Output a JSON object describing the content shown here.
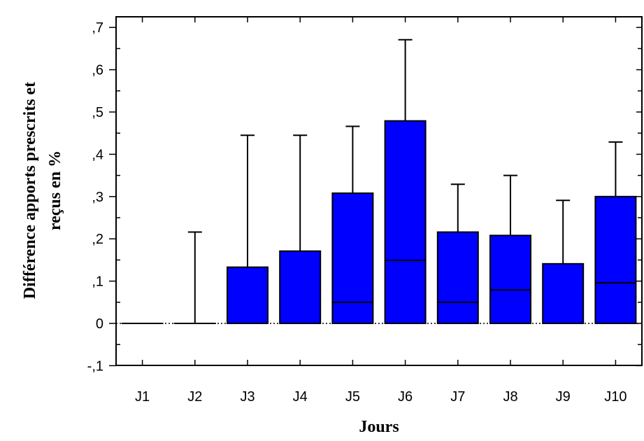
{
  "chart_data": {
    "type": "boxplot",
    "xlabel": "Jours",
    "ylabel_lines": [
      "Différence apports prescrits et",
      "reçus en %"
    ],
    "categories": [
      "J1",
      "J2",
      "J3",
      "J4",
      "J5",
      "J6",
      "J7",
      "J8",
      "J9",
      "J10"
    ],
    "ylim": [
      -0.1,
      0.7
    ],
    "yticks": [
      -0.1,
      0,
      0.1,
      0.2,
      0.3,
      0.4,
      0.5,
      0.6,
      0.7
    ],
    "ytick_labels": [
      "-,1",
      "0",
      ",1",
      ",2",
      ",3",
      ",4",
      ",5",
      ",6",
      ",7"
    ],
    "reference_line": 0,
    "box_color": "#0000ff",
    "boxes": [
      {
        "low": 0,
        "median": 0,
        "high": 0,
        "whisker": 0
      },
      {
        "low": 0,
        "median": 0,
        "high": 0,
        "whisker": 0.216
      },
      {
        "low": 0,
        "median": 0,
        "high": 0.133,
        "whisker": 0.445
      },
      {
        "low": 0,
        "median": 0,
        "high": 0.171,
        "whisker": 0.445
      },
      {
        "low": 0,
        "median": 0.05,
        "high": 0.308,
        "whisker": 0.466
      },
      {
        "low": 0,
        "median": 0.149,
        "high": 0.479,
        "whisker": 0.671
      },
      {
        "low": 0,
        "median": 0.05,
        "high": 0.216,
        "whisker": 0.329
      },
      {
        "low": 0,
        "median": 0.079,
        "high": 0.208,
        "whisker": 0.35
      },
      {
        "low": 0,
        "median": 0,
        "high": 0.141,
        "whisker": 0.291
      },
      {
        "low": 0,
        "median": 0.096,
        "high": 0.3,
        "whisker": 0.429
      }
    ]
  }
}
